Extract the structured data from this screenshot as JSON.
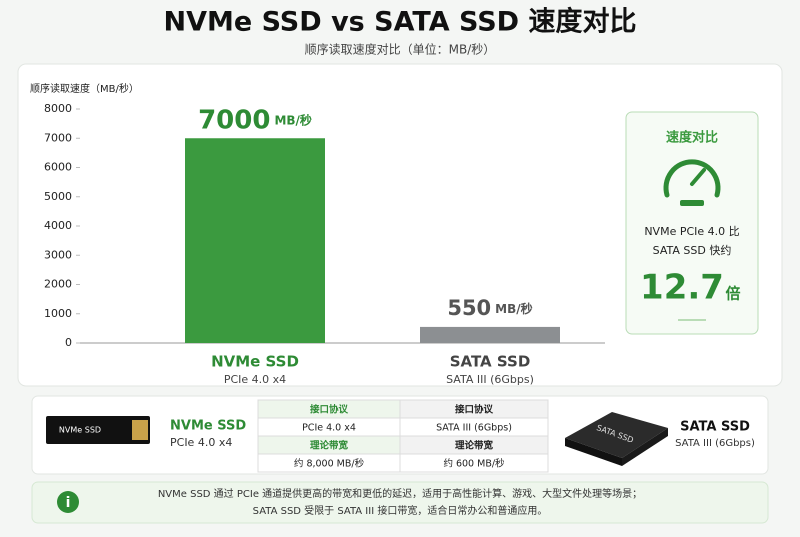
{
  "chart_data": {
    "type": "bar",
    "title": "NVMe SSD vs SATA SSD 速度对比",
    "subtitle": "顺序读取速度对比（单位：MB/秒）",
    "y_label": "顺序读取速度（MB/秒）",
    "categories": [
      "NVMe SSD",
      "SATA SSD"
    ],
    "category_sublabels": [
      "PCIe 4.0 x4",
      "SATA III (6Gbps)"
    ],
    "values": [
      7000,
      550
    ],
    "value_unit": "MB/秒",
    "colors": [
      "#3b9a3f",
      "#8c8f92"
    ],
    "ylim": [
      0,
      8000
    ],
    "yticks": [
      0,
      1000,
      2000,
      3000,
      4000,
      5000,
      6000,
      7000,
      8000
    ]
  },
  "speed_panel": {
    "title": "速度对比",
    "lines": [
      "NVMe PCIe 4.0 比",
      "SATA SSD 快约"
    ],
    "ratio": "12.7",
    "ratio_unit": "倍"
  },
  "products": [
    {
      "name": "NVMe SSD",
      "interface": "PCIe 4.0 x4"
    },
    {
      "name": "SATA SSD",
      "interface": "SATA III (6Gbps)"
    }
  ],
  "table": {
    "rows": [
      [
        "接口协议",
        "接口协议"
      ],
      [
        "PCIe 4.0 x4",
        "SATA III (6Gbps)"
      ],
      [
        "理论带宽",
        "理论带宽"
      ],
      [
        "约 8,000 MB/秒",
        "约 600 MB/秒"
      ]
    ]
  },
  "note": [
    "NVMe SSD 通过 PCIe 通道提供更高的带宽和更低的延迟，适用于高性能计算、游戏、大型文件处理等场景；",
    "SATA SSD 受限于 SATA III 接口带宽，适合日常办公和普通应用。"
  ]
}
